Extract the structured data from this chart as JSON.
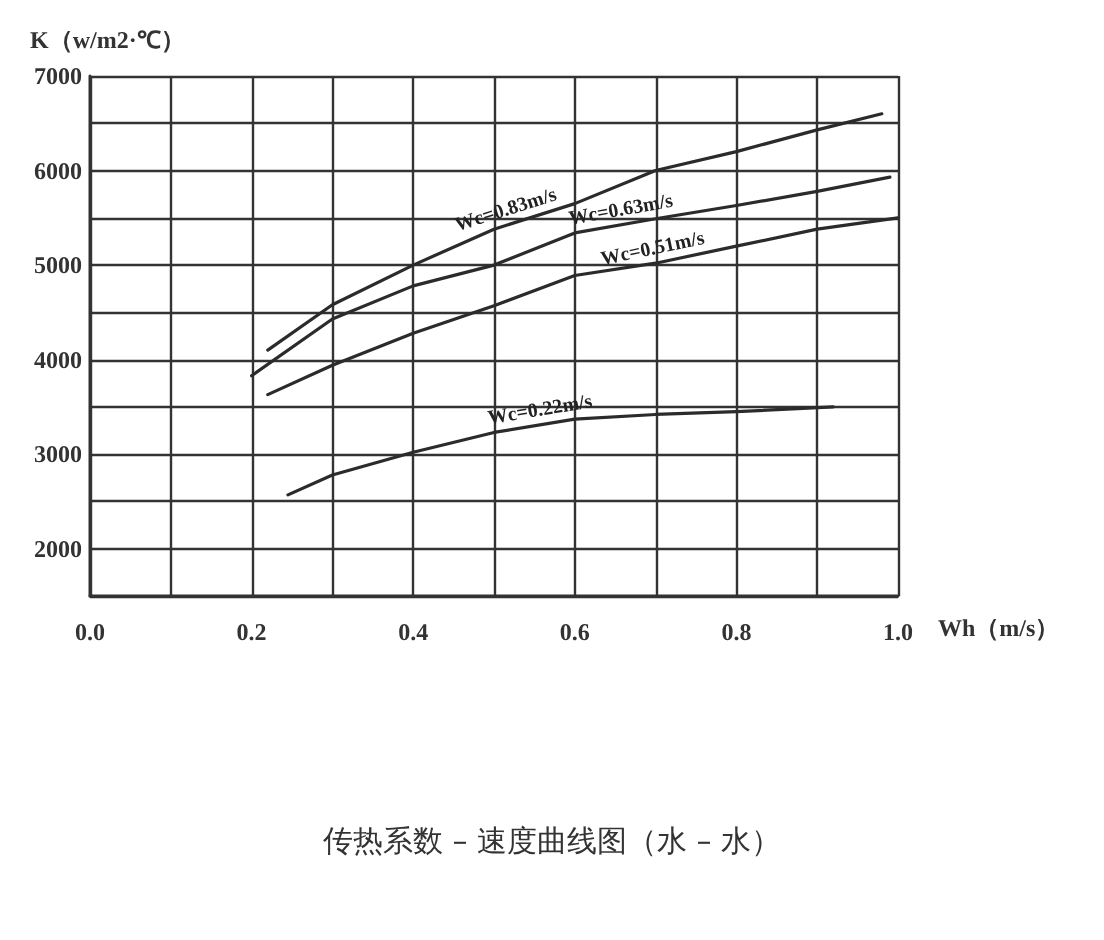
{
  "chart_data": {
    "type": "line",
    "title": "传热系数 – 速度曲线图（水 – 水）",
    "xlabel": "Wh（m/s）",
    "ylabel": "K（w/m2·℃）",
    "xlim": [
      0,
      1.0
    ],
    "xticks": [
      {
        "value": 0,
        "label": "0.0"
      },
      {
        "value": 0.1,
        "label": null
      },
      0.2,
      {
        "value": 0.3,
        "label": null
      },
      0.4,
      {
        "value": 0.5,
        "label": null
      },
      0.6,
      {
        "value": 0.7,
        "label": null
      },
      0.8,
      {
        "value": 0.9,
        "label": null
      },
      {
        "value": 1.0,
        "label": "1.0"
      }
    ],
    "ylim": [
      1500,
      7000
    ],
    "yticks": [
      {
        "value": 1500,
        "label": null
      },
      2000,
      {
        "value": 2500,
        "label": null
      },
      3000,
      {
        "value": 3500,
        "label": null
      },
      4000,
      {
        "value": 4500,
        "label": null
      },
      5000,
      {
        "value": 5500,
        "label": null
      },
      6000,
      {
        "value": 6500,
        "label": null
      },
      7000
    ],
    "grid": true,
    "marker": "none",
    "line_style": "solid",
    "series": [
      {
        "color": "#2b2b2b",
        "x": [
          0.22,
          0.3,
          0.4,
          0.5,
          0.6,
          0.7,
          0.8,
          0.9,
          0.98
        ],
        "values": [
          4100,
          4580,
          5000,
          5380,
          5650,
          6000,
          6200,
          6430,
          6600
        ]
      },
      {
        "color": "#2b2b2b",
        "x": [
          0.2,
          0.3,
          0.4,
          0.5,
          0.6,
          0.7,
          0.8,
          0.9,
          0.99
        ],
        "values": [
          3830,
          4430,
          4780,
          5000,
          5340,
          5490,
          5630,
          5780,
          5930
        ]
      },
      {
        "color": "#2b2b2b",
        "x": [
          0.22,
          0.3,
          0.4,
          0.5,
          0.6,
          0.7,
          0.8,
          0.9,
          1.0
        ],
        "values": [
          3630,
          3940,
          4280,
          4570,
          4890,
          5020,
          5200,
          5380,
          5500
        ]
      },
      {
        "color": "#2b2b2b",
        "x": [
          0.245,
          0.3,
          0.4,
          0.5,
          0.6,
          0.7,
          0.8,
          0.92
        ],
        "values": [
          2570,
          2780,
          3020,
          3230,
          3370,
          3420,
          3450,
          3500
        ]
      }
    ],
    "annotations": [
      "Wc=0.83m/s",
      "Wc=0.63m/s",
      "Wc=0.51m/s",
      "Wc=0.22m/s"
    ]
  }
}
